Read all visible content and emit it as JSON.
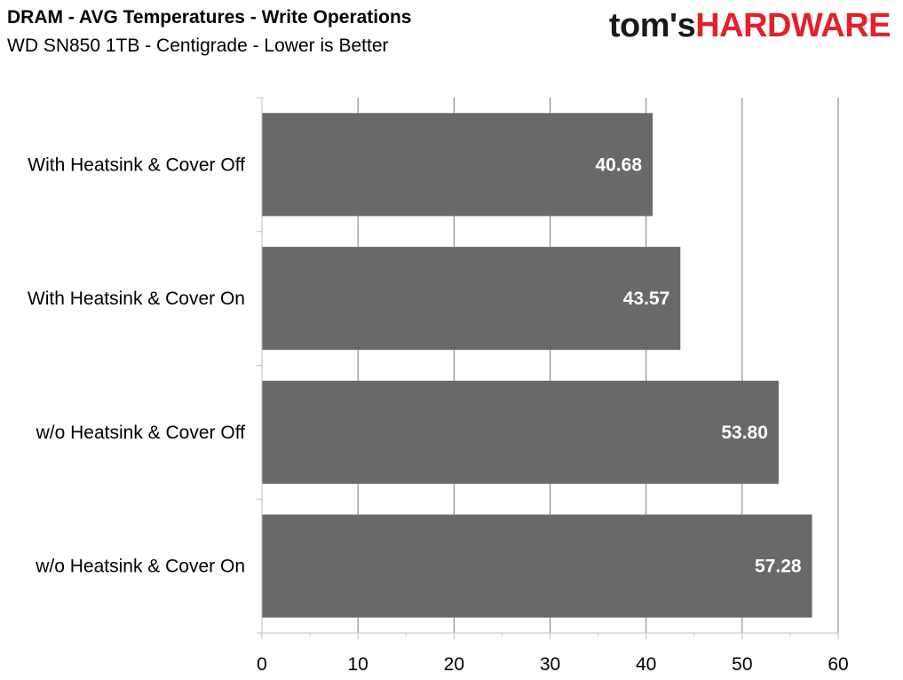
{
  "header": {
    "title": "DRAM - AVG Temperatures - Write Operations",
    "subtitle": "WD SN850 1TB - Centigrade - Lower is Better",
    "logo_part_a": "tom's",
    "logo_part_b": "HARDWARE"
  },
  "colors": {
    "bar": "#6a6869",
    "gridline": "#7a7a7a",
    "axis": "#bfbfbf",
    "logo_red": "#e3202c",
    "data_label": "#ffffff"
  },
  "chart_data": {
    "type": "bar",
    "orientation": "horizontal",
    "title": "DRAM - AVG Temperatures - Write Operations",
    "subtitle": "WD SN850 1TB - Centigrade - Lower is Better",
    "categories": [
      "With Heatsink & Cover Off",
      "With Heatsink & Cover On",
      "w/o Heatsink & Cover Off",
      "w/o Heatsink & Cover On"
    ],
    "values": [
      40.68,
      43.57,
      53.8,
      57.28
    ],
    "value_labels": [
      "40.68",
      "43.57",
      "53.80",
      "57.28"
    ],
    "xlim": [
      0,
      60
    ],
    "x_ticks": [
      0,
      10,
      20,
      30,
      40,
      50,
      60
    ],
    "grid": true,
    "legend": "none"
  }
}
